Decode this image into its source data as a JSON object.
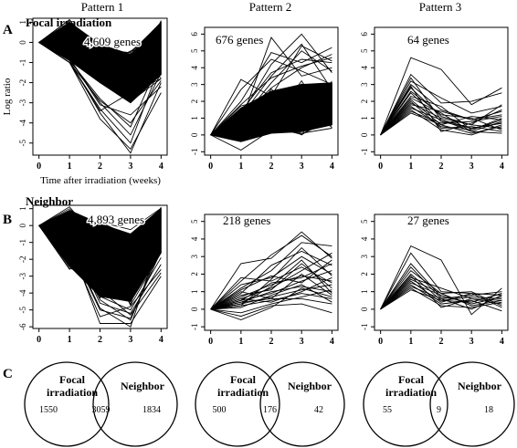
{
  "pattern_headers": [
    "Pattern 1",
    "Pattern 2",
    "Pattern 3"
  ],
  "row_letters": [
    "A",
    "B",
    "C"
  ],
  "row_titles": [
    "Focal irradiation",
    "Neighbor"
  ],
  "ylabel": "Log ratio",
  "xlabel": "Time after irradiation (weeks)",
  "chart_data": [
    {
      "type": "line",
      "row": 0,
      "col": 0,
      "annotation": "4,609 genes",
      "x": [
        0,
        1,
        2,
        3,
        4
      ],
      "ylim": [
        -5.6,
        1.2
      ],
      "yticks": [
        1,
        0,
        -1,
        -2,
        -3,
        -4,
        -5
      ],
      "xticks": [
        0,
        1,
        2,
        3,
        4
      ],
      "envelope": {
        "upper": [
          0,
          1,
          -0.1,
          -0.6,
          1.0
        ],
        "lower": [
          0,
          -0.9,
          -2.0,
          -3.0,
          -1.6
        ]
      },
      "outlier_series": [
        [
          0,
          -0.9,
          -3.5,
          -5.5,
          -2.0
        ],
        [
          0,
          -1.0,
          -3.3,
          -5.0,
          -1.0
        ],
        [
          0,
          -0.8,
          -3.0,
          -4.6,
          -1.5
        ],
        [
          0,
          -1.0,
          -3.8,
          -5.3,
          -2.5
        ],
        [
          0,
          -0.9,
          -2.8,
          -4.2,
          -0.8
        ],
        [
          0,
          -1.0,
          -3.4,
          -2.5,
          -1.8
        ],
        [
          0,
          -0.8,
          -3.1,
          -3.6,
          -2.2
        ],
        [
          0,
          -1.0,
          -2.9,
          -4.0,
          -1.9
        ]
      ]
    },
    {
      "type": "line",
      "row": 0,
      "col": 1,
      "annotation": "676 genes",
      "x": [
        0,
        1,
        2,
        3,
        4
      ],
      "ylim": [
        -1.2,
        6.4
      ],
      "yticks": [
        -1,
        0,
        1,
        2,
        3,
        4,
        5,
        6
      ],
      "xticks": [
        0,
        1,
        2,
        3,
        4
      ],
      "envelope": {
        "upper": [
          0,
          1.6,
          2.6,
          3.0,
          3.1
        ],
        "lower": [
          0,
          -0.4,
          0.1,
          0.2,
          0.6
        ]
      },
      "outlier_series": [
        [
          0,
          0.8,
          5.8,
          3.5,
          4.0
        ],
        [
          0,
          3.3,
          2.3,
          5.3,
          4.4
        ],
        [
          0,
          1.2,
          4.2,
          6.0,
          3.7
        ],
        [
          0,
          0.9,
          3.1,
          5.0,
          3.8
        ],
        [
          0,
          2.0,
          4.9,
          4.3,
          5.2
        ],
        [
          0,
          1.4,
          3.7,
          4.5,
          4.3
        ],
        [
          0,
          1.8,
          3.4,
          4.1,
          4.6
        ],
        [
          0,
          2.7,
          4.5,
          3.8,
          3.0
        ],
        [
          0,
          1.1,
          3.5,
          5.4,
          2.7
        ],
        [
          0,
          1.0,
          2.8,
          4.0,
          4.8
        ],
        [
          0,
          -0.9,
          0.3,
          0.1,
          0.4
        ],
        [
          0,
          -0.3,
          1.0,
          0.0,
          1.3
        ]
      ]
    },
    {
      "type": "line",
      "row": 0,
      "col": 2,
      "annotation": "64 genes",
      "x": [
        0,
        1,
        2,
        3,
        4
      ],
      "ylim": [
        -1.2,
        6.4
      ],
      "yticks": [
        -1,
        0,
        1,
        2,
        3,
        4,
        5,
        6
      ],
      "xticks": [
        0,
        1,
        2,
        3,
        4
      ],
      "series": [
        [
          0,
          4.6,
          3.9,
          1.8,
          2.8
        ],
        [
          0,
          3.6,
          1.9,
          2.0,
          2.5
        ],
        [
          0,
          3.2,
          2.2,
          1.3,
          1.7
        ],
        [
          0,
          3.0,
          1.5,
          0.9,
          1.2
        ],
        [
          0,
          2.8,
          1.1,
          0.6,
          1.8
        ],
        [
          0,
          2.5,
          0.8,
          0.4,
          0.7
        ],
        [
          0,
          2.3,
          1.7,
          0.3,
          1.0
        ],
        [
          0,
          2.1,
          0.6,
          0.1,
          0.5
        ],
        [
          0,
          1.9,
          1.0,
          0.6,
          0.4
        ],
        [
          0,
          1.7,
          0.5,
          0.3,
          0.9
        ],
        [
          0,
          1.5,
          0.3,
          0.0,
          0.6
        ],
        [
          0,
          1.4,
          0.7,
          0.8,
          1.1
        ],
        [
          0,
          2.6,
          1.2,
          1.0,
          0.3
        ],
        [
          0,
          3.4,
          0.9,
          0.2,
          0.8
        ],
        [
          0,
          1.8,
          1.4,
          0.9,
          1.4
        ],
        [
          0,
          2.0,
          0.4,
          0.5,
          0.2
        ],
        [
          0,
          2.9,
          0.2,
          0.7,
          1.5
        ],
        [
          0,
          1.6,
          0.9,
          0.4,
          0.7
        ],
        [
          0,
          2.2,
          1.3,
          0.2,
          0.1
        ],
        [
          0,
          1.3,
          0.6,
          1.1,
          0.9
        ]
      ]
    },
    {
      "type": "line",
      "row": 1,
      "col": 0,
      "annotation": "4,893 genes",
      "x": [
        0,
        1,
        2,
        3,
        4
      ],
      "ylim": [
        -6.1,
        1.2
      ],
      "yticks": [
        1,
        0,
        -1,
        -2,
        -3,
        -4,
        -5,
        -6
      ],
      "xticks": [
        0,
        1,
        2,
        3,
        4
      ],
      "envelope": {
        "upper": [
          0,
          0.9,
          0.1,
          -0.5,
          1.0
        ],
        "lower": [
          0,
          -2.4,
          -4.2,
          -4.5,
          -1.6
        ]
      },
      "outlier_series": [
        [
          0,
          -1.0,
          -5.8,
          -5.8,
          -3.0
        ],
        [
          0,
          -1.2,
          -5.0,
          -5.5,
          -1.5
        ],
        [
          0,
          -0.8,
          -4.6,
          -5.2,
          -2.3
        ],
        [
          0,
          -1.1,
          -4.9,
          -6.0,
          -0.6
        ],
        [
          0,
          -0.9,
          -4.2,
          -5.0,
          -1.9
        ],
        [
          0,
          -1.3,
          -5.4,
          -4.8,
          -2.6
        ],
        [
          0,
          -1.0,
          -4.4,
          -5.6,
          -1.2
        ],
        [
          0,
          -1.2,
          -3.8,
          -5.3,
          -2.8
        ]
      ]
    },
    {
      "type": "line",
      "row": 1,
      "col": 1,
      "annotation": "218 genes",
      "x": [
        0,
        1,
        2,
        3,
        4
      ],
      "ylim": [
        -1.2,
        5.4
      ],
      "yticks": [
        -1,
        0,
        1,
        2,
        3,
        4,
        5
      ],
      "xticks": [
        0,
        1,
        2,
        3,
        4
      ],
      "series": [
        [
          0,
          2.6,
          2.9,
          4.4,
          2.9
        ],
        [
          0,
          1.6,
          3.1,
          4.2,
          3.0
        ],
        [
          0,
          1.2,
          2.2,
          3.8,
          3.6
        ],
        [
          0,
          0.9,
          2.5,
          3.3,
          2.5
        ],
        [
          0,
          1.4,
          1.8,
          3.0,
          2.0
        ],
        [
          0,
          0.6,
          1.2,
          2.2,
          3.2
        ],
        [
          0,
          0.7,
          1.4,
          1.9,
          1.6
        ],
        [
          0,
          0.5,
          0.9,
          1.6,
          2.2
        ],
        [
          0,
          0.4,
          1.0,
          1.3,
          1.0
        ],
        [
          0,
          0.3,
          0.7,
          1.1,
          1.4
        ],
        [
          0,
          0.8,
          1.1,
          2.6,
          1.2
        ],
        [
          0,
          0.2,
          0.5,
          0.9,
          0.6
        ],
        [
          0,
          0.1,
          0.8,
          1.4,
          0.4
        ],
        [
          0,
          -0.4,
          0.2,
          0.3,
          -0.2
        ],
        [
          0,
          0.5,
          1.5,
          1.8,
          2.6
        ],
        [
          0,
          1.0,
          0.6,
          2.0,
          0.8
        ],
        [
          0,
          -0.2,
          0.3,
          0.7,
          1.1
        ],
        [
          0,
          0.6,
          0.4,
          1.0,
          1.8
        ],
        [
          0,
          1.8,
          1.6,
          2.4,
          1.5
        ],
        [
          0,
          0.3,
          1.3,
          2.8,
          0.9
        ],
        [
          0,
          0.4,
          0.6,
          0.6,
          0.3
        ],
        [
          0,
          -0.6,
          0.1,
          1.2,
          0.7
        ],
        [
          0,
          1.1,
          1.9,
          1.5,
          2.8
        ],
        [
          0,
          0.2,
          1.7,
          3.5,
          1.9
        ]
      ]
    },
    {
      "type": "line",
      "row": 1,
      "col": 2,
      "annotation": "27 genes",
      "x": [
        0,
        1,
        2,
        3,
        4
      ],
      "ylim": [
        -1.2,
        5.4
      ],
      "yticks": [
        -1,
        0,
        1,
        2,
        3,
        4,
        5
      ],
      "xticks": [
        0,
        1,
        2,
        3,
        4
      ],
      "series": [
        [
          0,
          3.6,
          2.8,
          -0.3,
          1.2
        ],
        [
          0,
          3.2,
          1.0,
          0.9,
          0.8
        ],
        [
          0,
          2.6,
          0.7,
          0.4,
          0.9
        ],
        [
          0,
          2.2,
          0.9,
          0.2,
          0.5
        ],
        [
          0,
          2.0,
          0.5,
          0.7,
          0.6
        ],
        [
          0,
          1.8,
          1.2,
          0.6,
          0.3
        ],
        [
          0,
          1.6,
          0.4,
          0.9,
          0.1
        ],
        [
          0,
          1.5,
          0.8,
          0.3,
          0.7
        ],
        [
          0,
          1.4,
          0.3,
          0.5,
          -0.1
        ],
        [
          0,
          1.3,
          0.6,
          0.8,
          1.0
        ],
        [
          0,
          1.2,
          0.2,
          0.1,
          0.4
        ],
        [
          0,
          1.7,
          0.9,
          1.0,
          0.2
        ],
        [
          0,
          2.4,
          0.6,
          0.0,
          0.8
        ],
        [
          0,
          1.9,
          0.1,
          0.6,
          0.5
        ],
        [
          0,
          1.1,
          0.5,
          0.4,
          0.9
        ]
      ]
    }
  ],
  "venn_diagrams": [
    {
      "left_label_1": "Focal",
      "left_label_2": "irradiation",
      "right_label": "Neighbor",
      "left_only": "1550",
      "both": "3059",
      "right_only": "1834"
    },
    {
      "left_label_1": "Focal",
      "left_label_2": "irradiation",
      "right_label": "Neighbor",
      "left_only": "500",
      "both": "176",
      "right_only": "42"
    },
    {
      "left_label_1": "Focal",
      "left_label_2": "irradiation",
      "right_label": "Neighbor",
      "left_only": "55",
      "both": "9",
      "right_only": "18"
    }
  ]
}
